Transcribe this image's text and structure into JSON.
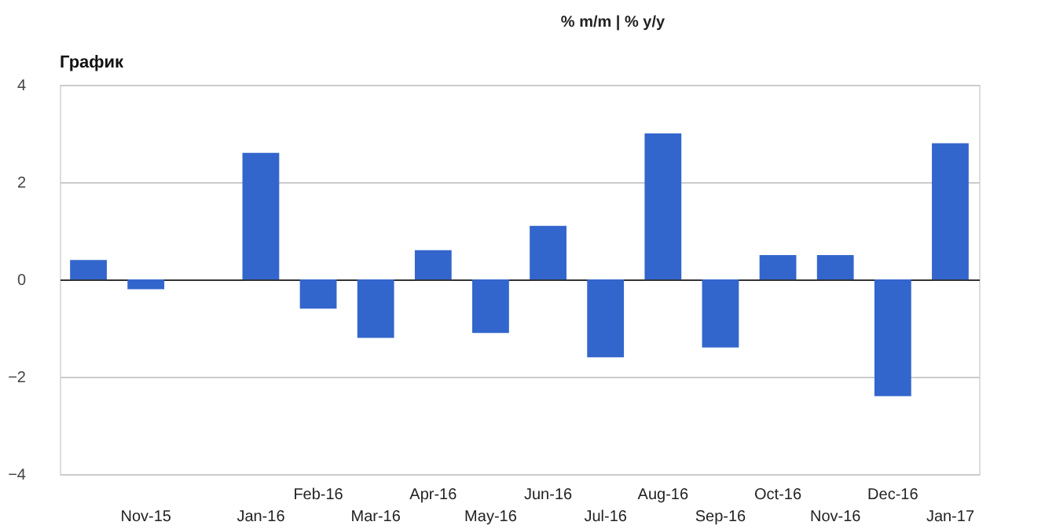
{
  "chart_data": {
    "type": "bar",
    "title": "График",
    "annotations": [
      "% m/m | % y/y"
    ],
    "categories": [
      null,
      "Nov-15",
      null,
      "Jan-16",
      "Feb-16",
      "Mar-16",
      "Apr-16",
      "May-16",
      "Jun-16",
      "Jul-16",
      "Aug-16",
      "Sep-16",
      "Oct-16",
      "Nov-16",
      "Dec-16",
      "Jan-17"
    ],
    "values": [
      0.4,
      -0.2,
      0,
      2.6,
      -0.6,
      -1.2,
      0.6,
      -1.1,
      1.1,
      -1.6,
      3.0,
      -1.4,
      0.5,
      0.5,
      -2.4,
      2.8
    ],
    "color": "#3366cc",
    "ylim": [
      -4,
      4
    ],
    "yticks": [
      -4,
      -2,
      0,
      2,
      4
    ],
    "grid": "y"
  }
}
